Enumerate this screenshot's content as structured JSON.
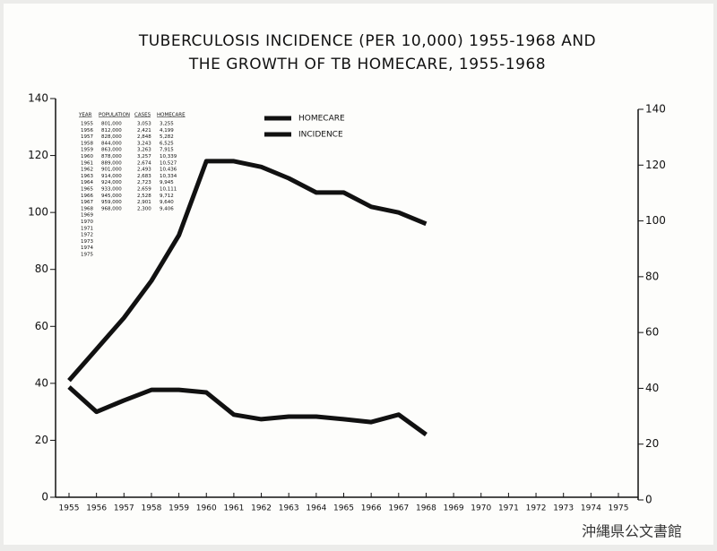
{
  "chart_data": {
    "type": "line",
    "title": [
      "TUBERCULOSIS INCIDENCE (PER 10,000) 1955-1968 AND",
      "THE GROWTH OF TB HOMECARE, 1955-1968"
    ],
    "x": [
      1955,
      1956,
      1957,
      1958,
      1959,
      1960,
      1961,
      1962,
      1963,
      1964,
      1965,
      1966,
      1967,
      1968
    ],
    "series": [
      {
        "name": "HOMECARE",
        "color": "#111111",
        "values": [
          41,
          52,
          63,
          76,
          92,
          118,
          118,
          116,
          112,
          107,
          107,
          102,
          100,
          96
        ]
      },
      {
        "name": "INCIDENCE",
        "color": "#111111",
        "values": [
          38.7,
          30,
          34,
          37.7,
          37.7,
          36.8,
          29,
          27.4,
          28.3,
          28.3,
          27.4,
          26.4,
          29,
          22
        ]
      }
    ],
    "xlim": [
      1955,
      1975
    ],
    "xticks": [
      1955,
      1956,
      1957,
      1958,
      1959,
      1960,
      1961,
      1962,
      1963,
      1964,
      1965,
      1966,
      1967,
      1968,
      1969,
      1970,
      1971,
      1972,
      1973,
      1974,
      1975
    ],
    "ylim": [
      0,
      140
    ],
    "yticks": [
      0,
      20,
      40,
      60,
      80,
      100,
      120,
      140
    ],
    "y2lim": [
      0,
      140
    ],
    "y2ticks": [
      0,
      20,
      40,
      60,
      80,
      100,
      120,
      140
    ],
    "table": {
      "columns": [
        "YEAR",
        "POPULATION",
        "CASES",
        "HOMECARE"
      ],
      "rows": [
        [
          "1955",
          "801,000",
          "3,053",
          "3,255"
        ],
        [
          "1956",
          "812,000",
          "2,421",
          "4,199"
        ],
        [
          "1957",
          "828,000",
          "2,848",
          "5,282"
        ],
        [
          "1958",
          "844,000",
          "3,243",
          "6,525"
        ],
        [
          "1959",
          "863,000",
          "3,263",
          "7,915"
        ],
        [
          "1960",
          "878,000",
          "3,257",
          "10,339"
        ],
        [
          "1961",
          "889,000",
          "2,674",
          "10,527"
        ],
        [
          "1962",
          "901,000",
          "2,493",
          "10,436"
        ],
        [
          "1963",
          "914,000",
          "2,683",
          "10,334"
        ],
        [
          "1964",
          "924,000",
          "2,723",
          "9,945"
        ],
        [
          "1965",
          "933,000",
          "2,659",
          "10,111"
        ],
        [
          "1966",
          "945,000",
          "2,528",
          "9,712"
        ],
        [
          "1967",
          "959,000",
          "2,901",
          "9,640"
        ],
        [
          "1968",
          "968,000",
          "2,300",
          "9,406"
        ],
        [
          "1969"
        ],
        [
          "1970"
        ],
        [
          "1971"
        ],
        [
          "1972"
        ],
        [
          "1973"
        ],
        [
          "1974"
        ],
        [
          "1975"
        ]
      ]
    },
    "watermark": "沖縄県公文書館"
  }
}
